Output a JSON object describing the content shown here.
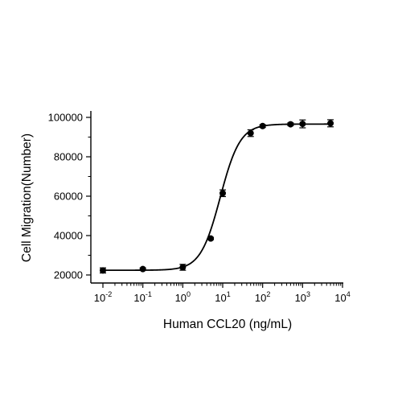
{
  "chart_data": {
    "type": "scatter",
    "title": "",
    "xlabel": "Human CCL20 (ng/mL)",
    "ylabel": "Cell Migration(Number)",
    "x_scale": "log",
    "xlim": [
      0.01,
      10000
    ],
    "ylim": [
      20000,
      100000
    ],
    "x_ticks": [
      {
        "value": 0.01,
        "base": "10",
        "exp": "-2"
      },
      {
        "value": 0.1,
        "base": "10",
        "exp": "-1"
      },
      {
        "value": 1,
        "base": "10",
        "exp": "0"
      },
      {
        "value": 10,
        "base": "10",
        "exp": "1"
      },
      {
        "value": 100,
        "base": "10",
        "exp": "2"
      },
      {
        "value": 1000,
        "base": "10",
        "exp": "3"
      },
      {
        "value": 10000,
        "base": "10",
        "exp": "4"
      }
    ],
    "y_ticks": [
      {
        "value": 20000,
        "label": "20000"
      },
      {
        "value": 40000,
        "label": "40000"
      },
      {
        "value": 60000,
        "label": "60000"
      },
      {
        "value": 80000,
        "label": "80000"
      },
      {
        "value": 100000,
        "label": "100000"
      }
    ],
    "grid": false,
    "legend": "none",
    "series": [
      {
        "x": [
          0.01,
          0.1,
          1,
          5,
          10,
          50,
          100,
          500,
          1000,
          5000
        ],
        "y": [
          22300,
          23000,
          23900,
          38500,
          61500,
          92000,
          95600,
          96500,
          96700,
          97000
        ],
        "error": [
          1300,
          600,
          1500,
          600,
          1700,
          1700,
          700,
          700,
          2000,
          1800
        ],
        "marker": "circle",
        "color": "#000000"
      }
    ],
    "fit_curve": {
      "bottom": 22400,
      "top": 96600,
      "ec50": 8.7,
      "hill_slope": 1.75,
      "x_range": [
        0.01,
        5000
      ],
      "color": "#000000"
    }
  }
}
